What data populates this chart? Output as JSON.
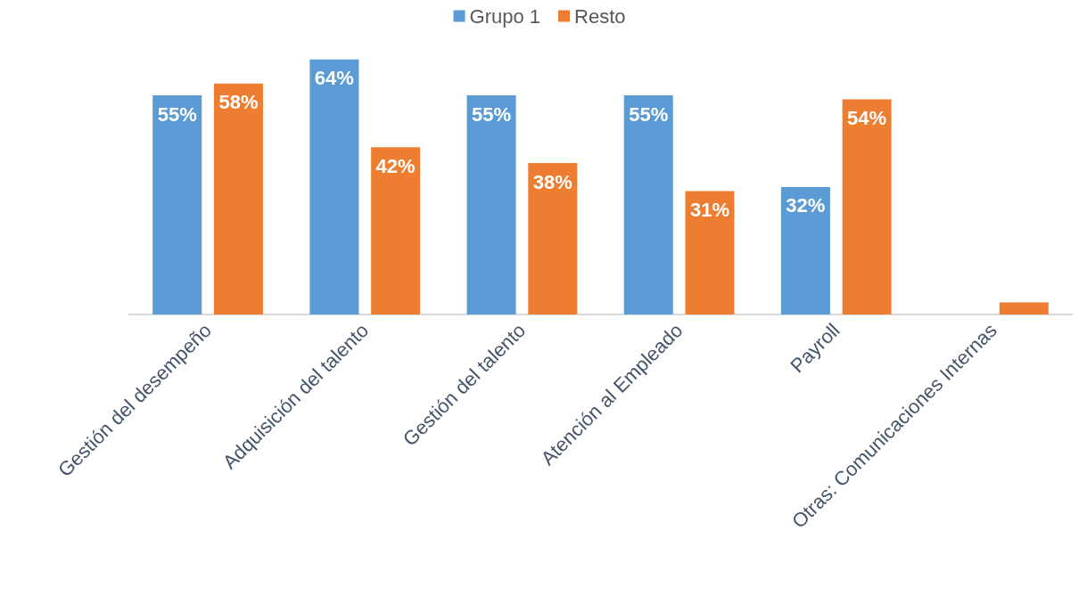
{
  "chart_data": {
    "type": "bar",
    "categories": [
      "Gestión del desempeño",
      "Adquisición del talento",
      "Gestión del talento",
      "Atención al Empleado",
      "Payroll",
      "Otras: Comunicaciones Internas"
    ],
    "series": [
      {
        "name": "Grupo 1",
        "color": "#5b9bd5",
        "values": [
          55,
          64,
          55,
          55,
          32,
          null
        ],
        "value_labels": [
          "55%",
          "64%",
          "55%",
          "55%",
          "32%",
          null
        ]
      },
      {
        "name": "Resto",
        "color": "#ed7d31",
        "values": [
          58,
          42,
          38,
          31,
          54,
          3
        ],
        "value_labels": [
          "58%",
          "42%",
          "38%",
          "31%",
          "54%",
          null
        ]
      }
    ],
    "legend": "top",
    "grid": false
  }
}
